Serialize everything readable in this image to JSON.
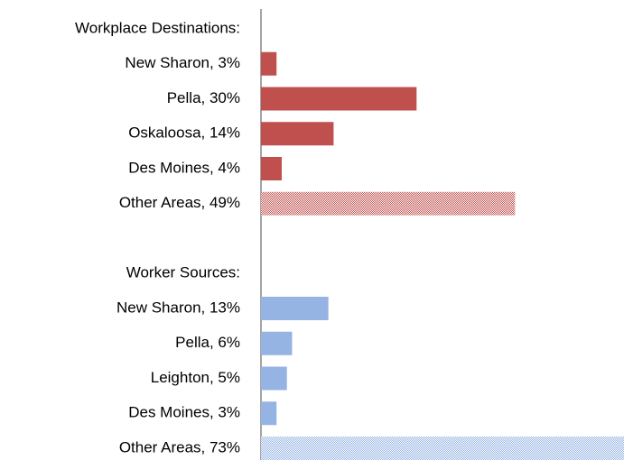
{
  "chart_data": {
    "type": "bar",
    "orientation": "horizontal",
    "categories": [
      "Workplace Destinations:",
      "New Sharon, 3%",
      "Pella, 30%",
      "Oskaloosa, 14%",
      "Des Moines, 4%",
      "Other Areas, 49%",
      null,
      "Worker Sources:",
      "New Sharon, 13%",
      "Pella, 6%",
      "Leighton, 5%",
      "Des Moines, 3%",
      "Other Areas, 73%"
    ],
    "values": [
      null,
      3,
      30,
      14,
      4,
      49,
      null,
      null,
      13,
      6,
      5,
      3,
      73
    ],
    "colors": [
      null,
      "#c0504d",
      "#c0504d",
      "#c0504d",
      "#c0504d",
      "#c0504d",
      null,
      null,
      "#95b3e3",
      "#95b3e3",
      "#95b3e3",
      "#95b3e3",
      "#95b3e3"
    ],
    "fill_pattern": [
      null,
      "solid",
      "solid",
      "solid",
      "solid",
      "dotted",
      null,
      null,
      "solid",
      "solid",
      "solid",
      "solid",
      "dotted"
    ],
    "xlim": [
      0,
      70
    ]
  }
}
